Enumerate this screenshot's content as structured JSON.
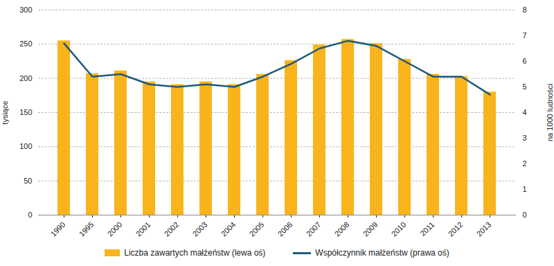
{
  "chart_data": {
    "type": "bar",
    "categories": [
      "1990",
      "1995",
      "2000",
      "2001",
      "2002",
      "2003",
      "2004",
      "2005",
      "2006",
      "2007",
      "2008",
      "2009",
      "2010",
      "2011",
      "2012",
      "2013"
    ],
    "series": [
      {
        "name": "Liczba zawartych małżeństw (lewa oś)",
        "type": "bar",
        "color": "#f9b41c",
        "values": [
          255,
          207,
          211,
          195,
          191,
          195,
          191,
          206,
          226,
          249,
          257,
          251,
          228,
          206,
          203,
          180
        ]
      },
      {
        "name": "Współczynnik małżeństw (prawa oś)",
        "type": "line",
        "axis": "y2",
        "color": "#1d5a78",
        "values": [
          6.7,
          5.4,
          5.5,
          5.1,
          5.0,
          5.1,
          5.0,
          5.4,
          5.9,
          6.5,
          6.8,
          6.6,
          6.0,
          5.4,
          5.4,
          4.7
        ]
      }
    ],
    "ylabel": "tysiące",
    "y2label": "na 1000 ludności",
    "ylim": [
      0,
      300
    ],
    "yticks": [
      0,
      50,
      100,
      150,
      200,
      250,
      300
    ],
    "y2lim": [
      0,
      8
    ],
    "y2ticks": [
      0,
      1,
      2,
      3,
      4,
      5,
      6,
      7,
      8
    ],
    "grid": true,
    "legend": "bottom"
  }
}
